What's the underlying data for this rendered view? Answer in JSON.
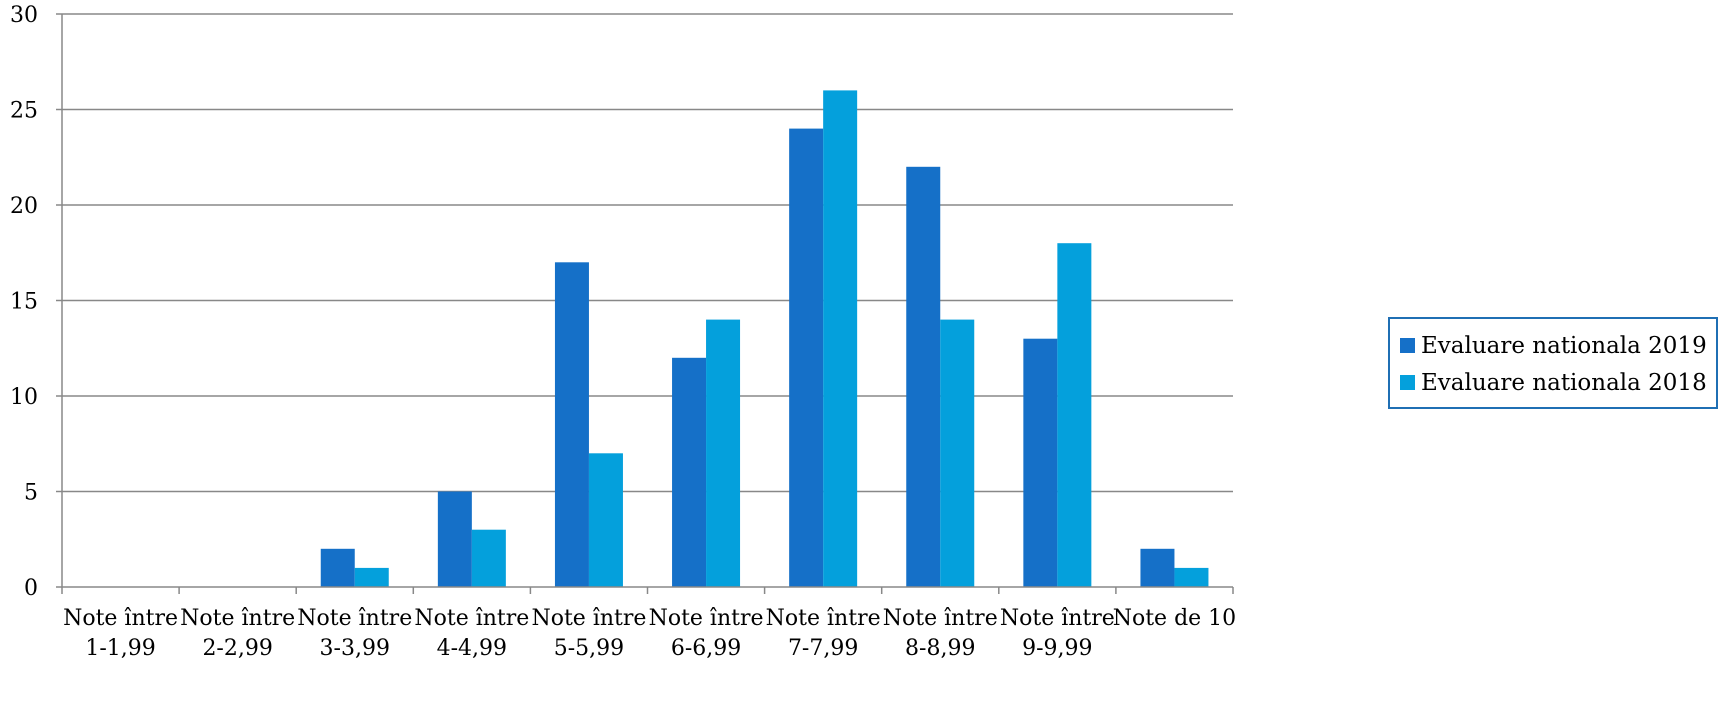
{
  "chart_data": {
    "type": "bar",
    "title": "",
    "xlabel": "",
    "ylabel": "",
    "categories": [
      [
        "Note între",
        "1-1,99"
      ],
      [
        "Note între",
        "2-2,99"
      ],
      [
        "Note între",
        "3-3,99"
      ],
      [
        "Note între",
        "4-4,99"
      ],
      [
        "Note între",
        "5-5,99"
      ],
      [
        "Note între",
        "6-6,99"
      ],
      [
        "Note între",
        "7-7,99"
      ],
      [
        "Note între",
        "8-8,99"
      ],
      [
        "Note între",
        "9-9,99"
      ],
      [
        "Note de 10",
        ""
      ]
    ],
    "series": [
      {
        "name": "Evaluare nationala 2019",
        "color": "#1570c8",
        "values": [
          0,
          0,
          2,
          5,
          17,
          12,
          24,
          22,
          13,
          2
        ]
      },
      {
        "name": "Evaluare nationala 2018",
        "color": "#04a0dc",
        "values": [
          0,
          0,
          1,
          3,
          7,
          14,
          26,
          14,
          18,
          1
        ]
      }
    ],
    "ylim": [
      0,
      30
    ],
    "yticks": [
      0,
      5,
      10,
      15,
      20,
      25,
      30
    ],
    "grid": true,
    "legend_position": "right"
  }
}
